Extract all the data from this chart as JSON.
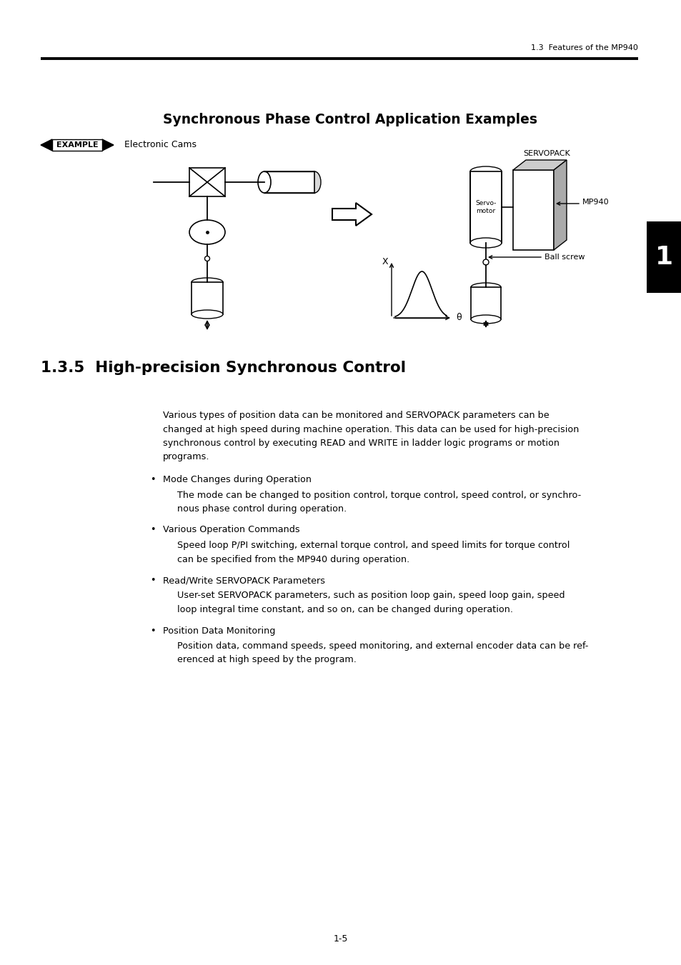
{
  "page_header_right": "1.3  Features of the MP940",
  "section_title": "Synchronous Phase Control Application Examples",
  "example_label": "EXAMPLE",
  "example_sublabel": "Electronic Cams",
  "section_number": "1.3.5  High-precision Synchronous Control",
  "body_text_lines": [
    "Various types of position data can be monitored and SERVOPACK parameters can be",
    "changed at high speed during machine operation. This data can be used for high-precision",
    "synchronous control by executing READ and WRITE in ladder logic programs or motion",
    "programs."
  ],
  "bullet_items": [
    {
      "bullet": "Mode Changes during Operation",
      "body_lines": [
        "The mode can be changed to position control, torque control, speed control, or synchro-",
        "nous phase control during operation."
      ]
    },
    {
      "bullet": "Various Operation Commands",
      "body_lines": [
        "Speed loop P/PI switching, external torque control, and speed limits for torque control",
        "can be specified from the MP940 during operation."
      ]
    },
    {
      "bullet": "Read/Write SERVOPACK Parameters",
      "body_lines": [
        "User-set SERVOPACK parameters, such as position loop gain, speed loop gain, speed",
        "loop integral time constant, and so on, can be changed during operation."
      ]
    },
    {
      "bullet": "Position Data Monitoring",
      "body_lines": [
        "Position data, command speeds, speed monitoring, and external encoder data can be ref-",
        "erenced at high speed by the program."
      ]
    }
  ],
  "page_number": "1-5",
  "bg_color": "#ffffff",
  "text_color": "#000000",
  "tab_number": "1"
}
